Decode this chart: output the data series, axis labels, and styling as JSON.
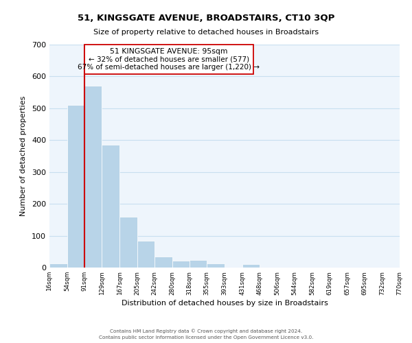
{
  "title": "51, KINGSGATE AVENUE, BROADSTAIRS, CT10 3QP",
  "subtitle": "Size of property relative to detached houses in Broadstairs",
  "xlabel": "Distribution of detached houses by size in Broadstairs",
  "ylabel": "Number of detached properties",
  "bar_edges": [
    16,
    54,
    91,
    129,
    167,
    205,
    242,
    280,
    318,
    355,
    393,
    431,
    468,
    506,
    544,
    582,
    619,
    657,
    695,
    732,
    770
  ],
  "bar_heights": [
    13,
    511,
    571,
    385,
    159,
    83,
    35,
    22,
    24,
    14,
    0,
    10,
    0,
    0,
    0,
    0,
    0,
    0,
    0,
    0
  ],
  "tick_labels": [
    "16sqm",
    "54sqm",
    "91sqm",
    "129sqm",
    "167sqm",
    "205sqm",
    "242sqm",
    "280sqm",
    "318sqm",
    "355sqm",
    "393sqm",
    "431sqm",
    "468sqm",
    "506sqm",
    "544sqm",
    "582sqm",
    "619sqm",
    "657sqm",
    "695sqm",
    "732sqm",
    "770sqm"
  ],
  "bar_color": "#b8d4e8",
  "bar_edge_color": "white",
  "grid_color": "#c8dff0",
  "bg_color": "#eef5fc",
  "property_line_x": 91,
  "property_line_color": "#cc0000",
  "annotation_line1": "51 KINGSGATE AVENUE: 95sqm",
  "annotation_line2": "← 32% of detached houses are smaller (577)",
  "annotation_line3": "67% of semi-detached houses are larger (1,220) →",
  "ylim": [
    0,
    700
  ],
  "yticks": [
    0,
    100,
    200,
    300,
    400,
    500,
    600,
    700
  ],
  "footer_line1": "Contains HM Land Registry data © Crown copyright and database right 2024.",
  "footer_line2": "Contains public sector information licensed under the Open Government Licence v3.0."
}
